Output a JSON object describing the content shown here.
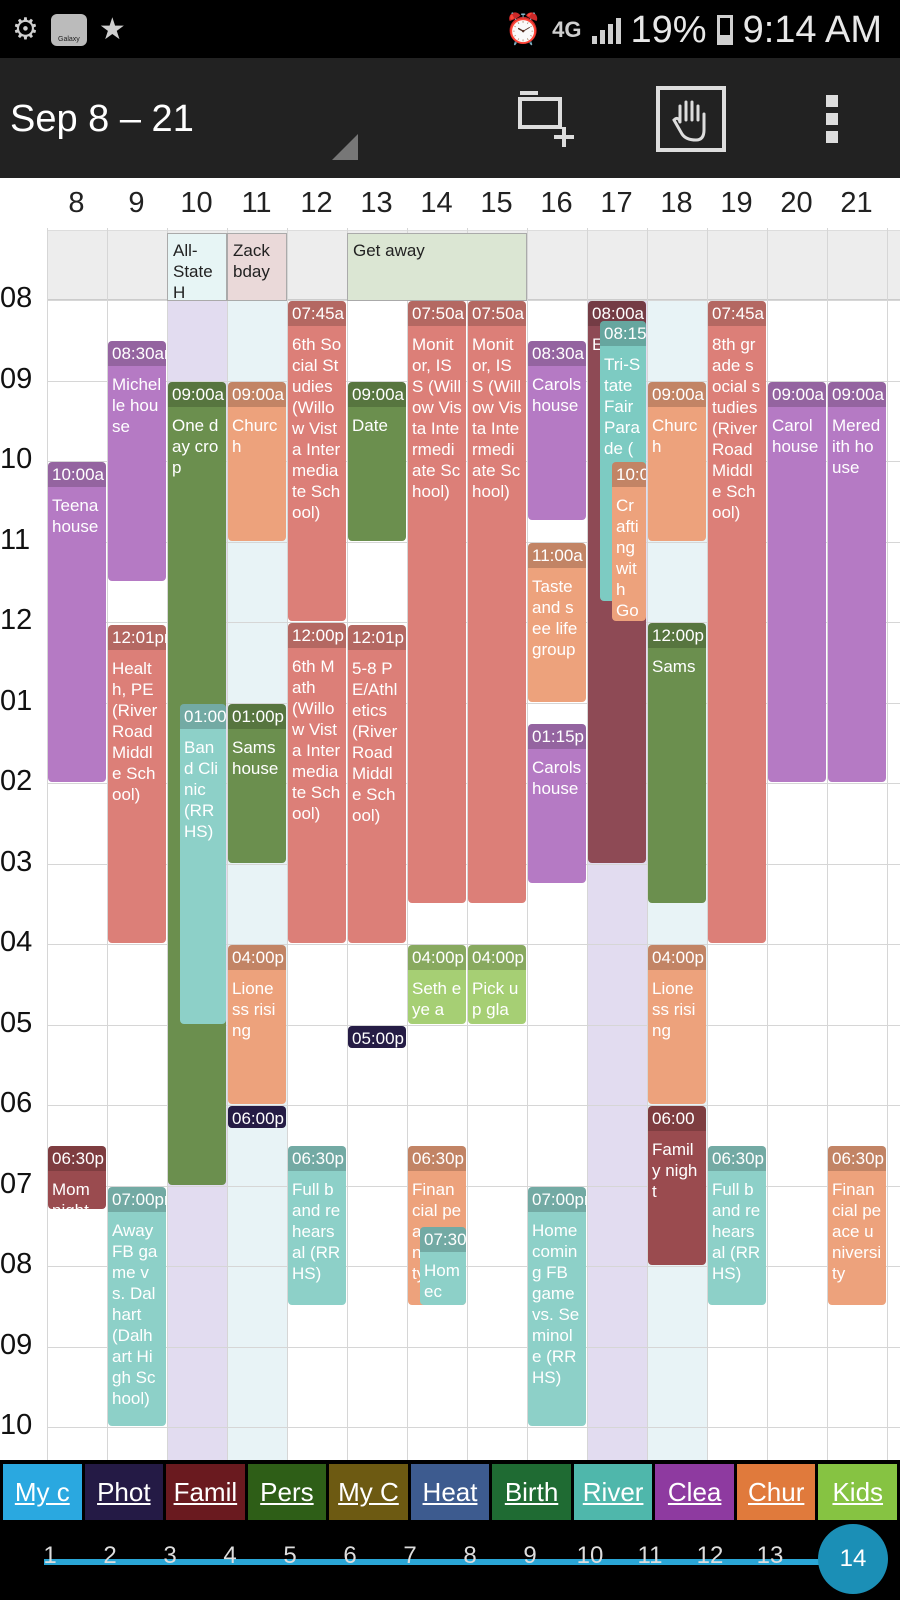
{
  "status_bar": {
    "network": "4G",
    "battery": "19%",
    "time": "9:14 AM",
    "icons": [
      "settings-gear-icon",
      "galaxy-apps-icon",
      "star-icon",
      "alarm-icon",
      "network-4g-icon",
      "signal-icon",
      "battery-icon"
    ],
    "galaxy_text": "Galaxy"
  },
  "toolbar": {
    "title": "Sep 8 – 21",
    "actions": [
      "add-event-icon",
      "drag-hand-icon",
      "overflow-menu-icon"
    ]
  },
  "calendar": {
    "day_numbers": [
      "8",
      "9",
      "10",
      "11",
      "12",
      "13",
      "14",
      "15",
      "16",
      "17",
      "18",
      "19",
      "20",
      "21"
    ],
    "hour_labels": [
      "08",
      "09",
      "10",
      "11",
      "12",
      "01",
      "02",
      "03",
      "04",
      "05",
      "06",
      "07",
      "08",
      "09",
      "10"
    ],
    "all_day_events": [
      {
        "title": "All-State H",
        "color": "#e7f5f5"
      },
      {
        "title": "Zack bday",
        "color": "#ead9d9"
      },
      {
        "title": "Get away",
        "color": "#dbe6d3"
      }
    ],
    "events": [
      {
        "time": "10:00a",
        "title": "Teena house",
        "color": "#b57ac4"
      },
      {
        "time": "06:30p",
        "title": "Mom night",
        "color": "#9a4b4f"
      },
      {
        "time": "08:30am",
        "title": "Michelle house",
        "color": "#b57ac4"
      },
      {
        "time": "12:01pm",
        "title": "Health, PE (River Road Middle School)",
        "color": "#dc7f78"
      },
      {
        "time": "07:00pm",
        "title": "Away FB game vs. Dalhart (Dalhart High School)",
        "color": "#8dd0c8"
      },
      {
        "time": "09:00a",
        "title": "One day crop",
        "color": "#6b8f4e"
      },
      {
        "time": "01:00",
        "title": "Band Clinic (RRHS)",
        "color": "#8dd0c8"
      },
      {
        "time": "09:00a",
        "title": "Church",
        "color": "#eda27c"
      },
      {
        "time": "01:00p",
        "title": "Sams house",
        "color": "#6b8f4e"
      },
      {
        "time": "04:00p",
        "title": "Lioness rising",
        "color": "#eda27c"
      },
      {
        "time": "06:00p",
        "title": "",
        "color": "#2e2355"
      },
      {
        "time": "07:45a",
        "title": "6th Social Studies (Willow Vista Intermediate School)",
        "color": "#dc7f78"
      },
      {
        "time": "12:00p",
        "title": "6th Math (Willow Vista Intermediate School)",
        "color": "#dc7f78"
      },
      {
        "time": "06:30p",
        "title": "Full band rehearsal (RRHS)",
        "color": "#8dd0c8"
      },
      {
        "time": "09:00a",
        "title": "Date",
        "color": "#6b8f4e"
      },
      {
        "time": "12:01p",
        "title": "5-8 PE/Athletics (River Road Middle School)",
        "color": "#dc7f78"
      },
      {
        "time": "05:00p",
        "title": "",
        "color": "#2e2355"
      },
      {
        "time": "07:50a",
        "title": "Monitor, ISS (Willow Vista Intermediate School)",
        "color": "#dc7f78"
      },
      {
        "time": "04:00p",
        "title": "Seth eye a",
        "color": "#a6cf74"
      },
      {
        "time": "06:30p",
        "title": "Financial peace university",
        "color": "#eda27c"
      },
      {
        "time": "07:30",
        "title": "Homec",
        "color": "#8dd0c8"
      },
      {
        "time": "07:50a",
        "title": "Monitor, ISS (Willow Vista Intermediate School)",
        "color": "#dc7f78"
      },
      {
        "time": "04:00p",
        "title": "Pick up gla",
        "color": "#a6cf74"
      },
      {
        "time": "08:30a",
        "title": "Carols house",
        "color": "#b57ac4"
      },
      {
        "time": "11:00a",
        "title": "Taste and see life group",
        "color": "#eda27c"
      },
      {
        "time": "01:15p",
        "title": "Carols house",
        "color": "#b57ac4"
      },
      {
        "time": "07:00pm",
        "title": "Homecoming FB game vs. Seminole (RRHS)",
        "color": "#8dd0c8"
      },
      {
        "time": "08:00a",
        "title": "Ep",
        "color": "#8e4a55"
      },
      {
        "time": "08:15am",
        "title": "Tri-State Fair Parade (",
        "color": "#7dcbc2"
      },
      {
        "time": "10:0",
        "title": "Crafting with Go",
        "color": "#eda27c"
      },
      {
        "time": "09:00a",
        "title": "Church",
        "color": "#eda27c"
      },
      {
        "time": "12:00p",
        "title": "Sams",
        "color": "#6b8f4e"
      },
      {
        "time": "04:00p",
        "title": "Lioness rising",
        "color": "#eda27c"
      },
      {
        "time": "06:00",
        "title": "Family night",
        "color": "#9a4b4f"
      },
      {
        "time": "07:45a",
        "title": "8th grade social studies (River Road Middle School)",
        "color": "#dc7f78"
      },
      {
        "time": "06:30p",
        "title": "Full band rehearsal (RRHS)",
        "color": "#8dd0c8"
      },
      {
        "time": "09:00a",
        "title": "Carol house",
        "color": "#b57ac4"
      },
      {
        "time": "09:00a",
        "title": "Meredith house",
        "color": "#b57ac4"
      },
      {
        "time": "06:30p",
        "title": "Financial peace university",
        "color": "#eda27c"
      }
    ]
  },
  "calendar_tabs": [
    {
      "label": "My c",
      "color": "#2aa8e0",
      "text_color": "#fff"
    },
    {
      "label": "Phot",
      "color": "#241a45",
      "text_color": "#fff"
    },
    {
      "label": "Famil",
      "color": "#6a1a1f",
      "text_color": "#fff"
    },
    {
      "label": "Pers",
      "color": "#2e5e17",
      "text_color": "#fff"
    },
    {
      "label": "My C",
      "color": "#6d5a12",
      "text_color": "#fff"
    },
    {
      "label": "Heat",
      "color": "#3d5b8f",
      "text_color": "#fff"
    },
    {
      "label": "Birth",
      "color": "#1f6b33",
      "text_color": "#fff"
    },
    {
      "label": "River",
      "color": "#4fb7ab",
      "text_color": "#fff"
    },
    {
      "label": "Clea",
      "color": "#8e3aa0",
      "text_color": "#fff"
    },
    {
      "label": "Chur",
      "color": "#e07a3c",
      "text_color": "#fff"
    },
    {
      "label": "Kids",
      "color": "#86c342",
      "text_color": "#fff"
    }
  ],
  "week_scale": {
    "labels": [
      "1",
      "2",
      "3",
      "4",
      "5",
      "6",
      "7",
      "8",
      "9",
      "10",
      "11",
      "12",
      "13"
    ],
    "selected": "14"
  }
}
